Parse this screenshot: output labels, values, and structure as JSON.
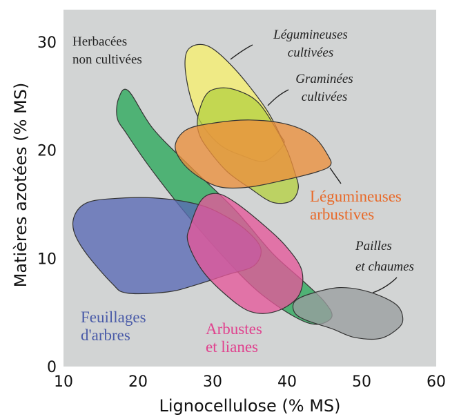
{
  "chart_data": {
    "type": "area",
    "xlabel": "Lignocellulose (% MS)",
    "ylabel": "Matières azotées (% MS)",
    "xlim": [
      10,
      60
    ],
    "ylim": [
      0,
      33
    ],
    "x_ticks": [
      "10",
      "20",
      "30",
      "40",
      "50",
      "60"
    ],
    "y_ticks": [
      "0",
      "10",
      "20",
      "30"
    ],
    "series": [
      {
        "name": "Herbacées non cultivées",
        "lines": [
          "Herbacées",
          "non cultivées"
        ],
        "color": "#2aa85a",
        "style": "plain",
        "points": [
          [
            17.4,
            24.8
          ],
          [
            18.7,
            25.5
          ],
          [
            22,
            22
          ],
          [
            27,
            18.5
          ],
          [
            33,
            14.5
          ],
          [
            38,
            10.5
          ],
          [
            42,
            8
          ],
          [
            45,
            6
          ],
          [
            46,
            4.6
          ],
          [
            44,
            3.9
          ],
          [
            41,
            4.6
          ],
          [
            36,
            7
          ],
          [
            31,
            10.5
          ],
          [
            26,
            14.5
          ],
          [
            21.5,
            18.5
          ],
          [
            18.5,
            21.5
          ],
          [
            17.2,
            23
          ]
        ]
      },
      {
        "name": "Légumineuses cultivées",
        "lines": [
          "Légumineuses",
          "cultivées"
        ],
        "color": "#f7ef6e",
        "style": "italic",
        "points": [
          [
            26.3,
            28
          ],
          [
            27,
            29.5
          ],
          [
            29.5,
            29.6
          ],
          [
            33,
            27.5
          ],
          [
            37,
            24
          ],
          [
            39,
            21.5
          ],
          [
            39.5,
            20.5
          ],
          [
            37,
            19
          ],
          [
            34,
            19.5
          ],
          [
            31,
            20.5
          ],
          [
            28.5,
            22.5
          ],
          [
            27,
            25
          ]
        ]
      },
      {
        "name": "Graminées cultivées",
        "lines": [
          "Graminées",
          "cultivées"
        ],
        "color": "#b6d142",
        "style": "italic",
        "points": [
          [
            28,
            23
          ],
          [
            29,
            25
          ],
          [
            30.5,
            25.7
          ],
          [
            33,
            25.6
          ],
          [
            36,
            24.5
          ],
          [
            38.5,
            22
          ],
          [
            40,
            20
          ],
          [
            41,
            18
          ],
          [
            41.5,
            16.5
          ],
          [
            40.5,
            15.3
          ],
          [
            38,
            15.2
          ],
          [
            35,
            16.5
          ],
          [
            32,
            18
          ],
          [
            29.5,
            20
          ],
          [
            28.2,
            21.5
          ]
        ]
      },
      {
        "name": "Légumineuses arbustives",
        "lines": [
          "Légumineuses",
          "arbustives"
        ],
        "color": "#ec8f3c",
        "style": "bold-orange",
        "points": [
          [
            25,
            20.5
          ],
          [
            26.5,
            21.9
          ],
          [
            30,
            22.5
          ],
          [
            35,
            22.8
          ],
          [
            40,
            22.4
          ],
          [
            43.5,
            21.3
          ],
          [
            45.5,
            19.5
          ],
          [
            45.8,
            18.6
          ],
          [
            44,
            18
          ],
          [
            40,
            17.3
          ],
          [
            35,
            16.6
          ],
          [
            31,
            16.6
          ],
          [
            28,
            17.6
          ],
          [
            25.8,
            19
          ]
        ]
      },
      {
        "name": "Feuillages d'arbres",
        "lines": [
          "Feuillages",
          "d'arbres"
        ],
        "color": "#5a69b5",
        "style": "bold-blue",
        "points": [
          [
            11.5,
            14
          ],
          [
            13,
            15.1
          ],
          [
            16,
            15.5
          ],
          [
            22,
            15.6
          ],
          [
            28,
            15
          ],
          [
            32,
            13.8
          ],
          [
            35,
            12.3
          ],
          [
            36.5,
            10.8
          ],
          [
            35.5,
            9.3
          ],
          [
            32,
            8.5
          ],
          [
            28,
            7.6
          ],
          [
            24,
            6.9
          ],
          [
            18.5,
            6.8
          ],
          [
            16.5,
            7.7
          ],
          [
            13,
            10.5
          ],
          [
            11.4,
            12.5
          ]
        ]
      },
      {
        "name": "Arbustes et lianes",
        "lines": [
          "Arbustes",
          "et lianes"
        ],
        "color": "#e5579a",
        "style": "bold-pink",
        "points": [
          [
            27,
            13
          ],
          [
            28.5,
            15.4
          ],
          [
            30.5,
            16
          ],
          [
            33,
            15.2
          ],
          [
            37,
            13
          ],
          [
            40,
            11
          ],
          [
            42,
            8.8
          ],
          [
            41.5,
            6.5
          ],
          [
            38.5,
            5.1
          ],
          [
            35,
            5.1
          ],
          [
            31.5,
            6.8
          ],
          [
            28.5,
            9
          ],
          [
            26.7,
            11.5
          ]
        ]
      },
      {
        "name": "Pailles et chaumes",
        "lines": [
          "Pailles",
          "et chaumes"
        ],
        "color": "#9a9d9f",
        "style": "italic",
        "points": [
          [
            41,
            6
          ],
          [
            43,
            6.7
          ],
          [
            47,
            7.3
          ],
          [
            51,
            6.9
          ],
          [
            54.5,
            5.8
          ],
          [
            55.5,
            4.6
          ],
          [
            55,
            3.6
          ],
          [
            52.5,
            2.6
          ],
          [
            49,
            2.7
          ],
          [
            46,
            3.5
          ],
          [
            42.5,
            4.3
          ],
          [
            41,
            5
          ]
        ]
      }
    ]
  }
}
